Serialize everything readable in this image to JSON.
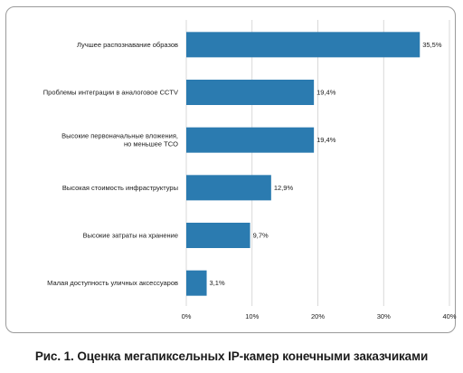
{
  "caption": "Рис. 1. Оценка мегапиксельных IP-камер конечными заказчиками",
  "colors": {
    "bar": "#2b7bb0",
    "grid": "#cfcfcf",
    "text": "#1a1a1a"
  },
  "chart_data": {
    "type": "bar",
    "orientation": "horizontal",
    "categories": [
      [
        "Лучшее распознавание образов"
      ],
      [
        "Проблемы интеграции в аналоговое CCTV"
      ],
      [
        "Высокие первоначальные вложения,",
        "но меньшее TCO"
      ],
      [
        "Высокая стоимость инфраструктуры"
      ],
      [
        "Высокие затраты на хранение"
      ],
      [
        "Малая доступность уличных аксессуаров"
      ]
    ],
    "values": [
      35.5,
      19.4,
      19.4,
      12.9,
      9.7,
      3.1
    ],
    "value_labels": [
      "35,5%",
      "19,4%",
      "19,4%",
      "12,9%",
      "9,7%",
      "3,1%"
    ],
    "xlim": [
      0,
      40
    ],
    "xticks": [
      0,
      10,
      20,
      30,
      40
    ],
    "xtick_labels": [
      "0%",
      "10%",
      "20%",
      "30%",
      "40%"
    ],
    "grid": true
  }
}
